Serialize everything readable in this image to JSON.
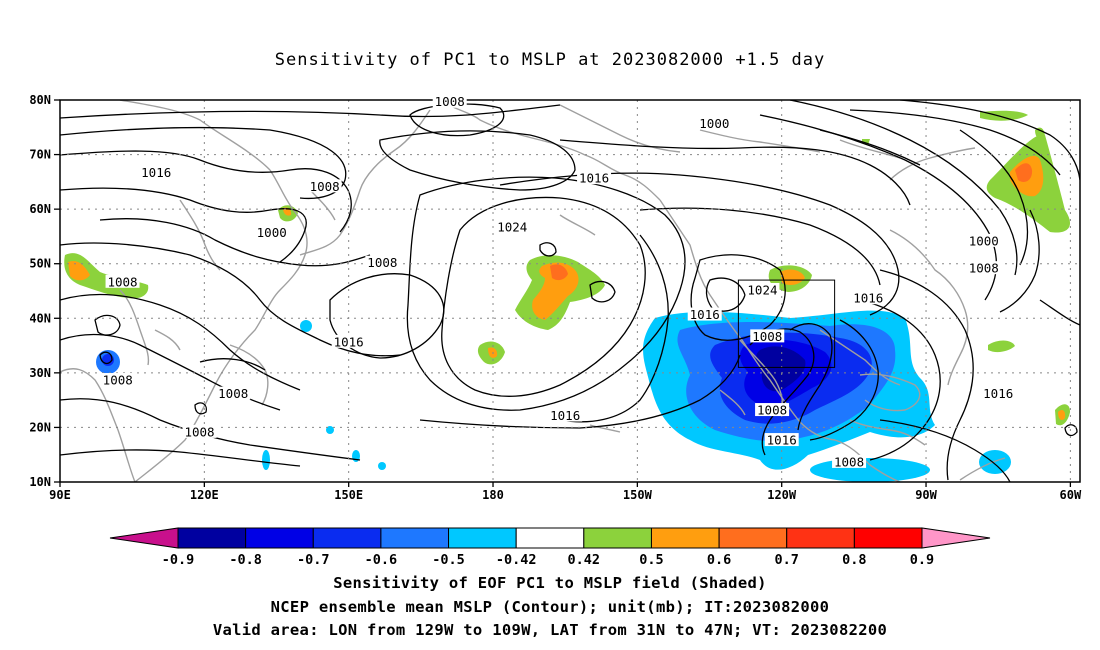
{
  "title": "Sensitivity of PC1 to MSLP at 2023082000 +1.5 day",
  "map": {
    "lat_ticks": [
      "80N",
      "70N",
      "60N",
      "50N",
      "40N",
      "30N",
      "20N",
      "10N"
    ],
    "lon_ticks": [
      "90E",
      "120E",
      "150E",
      "180",
      "150W",
      "120W",
      "90W",
      "60W"
    ],
    "lon_range": [
      90,
      302
    ],
    "lat_range": [
      10,
      80
    ],
    "grid": true,
    "valid_box": {
      "lon": [
        -129,
        -109
      ],
      "lat": [
        31,
        47
      ]
    },
    "contour_labels": [
      {
        "text": "1008",
        "lon": 171,
        "lat": 79.5
      },
      {
        "text": "1000",
        "lon": 226,
        "lat": 75.5
      },
      {
        "text": "1016",
        "lon": 110,
        "lat": 66.5
      },
      {
        "text": "1008",
        "lon": 145,
        "lat": 64
      },
      {
        "text": "1016",
        "lon": 201,
        "lat": 65.5
      },
      {
        "text": "1000",
        "lon": 134,
        "lat": 55.5
      },
      {
        "text": "1024",
        "lon": 184,
        "lat": 56.5
      },
      {
        "text": "1000",
        "lon": 282,
        "lat": 54
      },
      {
        "text": "1008",
        "lon": 157,
        "lat": 50
      },
      {
        "text": "1008",
        "lon": 282,
        "lat": 49
      },
      {
        "text": "1008",
        "lon": 103,
        "lat": 46.5
      },
      {
        "text": "1024",
        "lon": 236,
        "lat": 45
      },
      {
        "text": "1016",
        "lon": 258,
        "lat": 43.5
      },
      {
        "text": "1016",
        "lon": 224,
        "lat": 40.5
      },
      {
        "text": "1008",
        "lon": 237,
        "lat": 36.5
      },
      {
        "text": "1016",
        "lon": 150,
        "lat": 35.5
      },
      {
        "text": "1008",
        "lon": 102,
        "lat": 28.5
      },
      {
        "text": "1008",
        "lon": 126,
        "lat": 26
      },
      {
        "text": "1016",
        "lon": 285,
        "lat": 26
      },
      {
        "text": "1008",
        "lon": 238,
        "lat": 23
      },
      {
        "text": "1016",
        "lon": 195,
        "lat": 22
      },
      {
        "text": "1008",
        "lon": 119,
        "lat": 19
      },
      {
        "text": "1016",
        "lon": 240,
        "lat": 17.5
      },
      {
        "text": "1008",
        "lon": 254,
        "lat": 13.5
      }
    ]
  },
  "colorbar": {
    "labels": [
      "-0.9",
      "-0.8",
      "-0.7",
      "-0.6",
      "-0.5",
      "-0.42",
      "0.42",
      "0.5",
      "0.6",
      "0.7",
      "0.8",
      "0.9"
    ],
    "colors": [
      "#0000a0",
      "#0000e6",
      "#0a2cf0",
      "#1e78ff",
      "#00c8ff",
      "#ffffff",
      "#8cd23c",
      "#ff9e0f",
      "#ff6e1e",
      "#ff3214",
      "#ff0000"
    ],
    "under_color": "#c8108c",
    "over_color": "#ff96c8"
  },
  "captions": [
    "Sensitivity of EOF PC1 to MSLP field (Shaded)",
    "NCEP ensemble mean MSLP (Contour); unit(mb); IT:2023082000",
    "Valid area: LON from 129W to 109W, LAT from 31N to 47N; VT: 2023082200"
  ]
}
